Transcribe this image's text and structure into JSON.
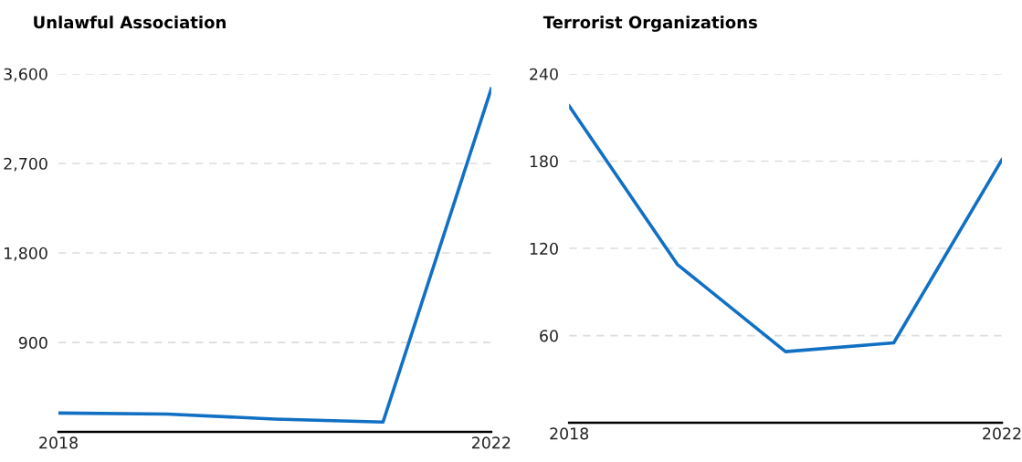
{
  "chart_data": [
    {
      "type": "line",
      "title": "Unlawful Association",
      "x": [
        2018,
        2019,
        2020,
        2021,
        2022
      ],
      "series": [
        {
          "color": "#1170c4",
          "values": [
            190,
            180,
            130,
            100,
            3450
          ]
        }
      ],
      "xlim": [
        2018,
        2022
      ],
      "xticks": [
        2018,
        2022
      ],
      "ylim": [
        0,
        3600
      ],
      "yticks": [
        {
          "value": 900,
          "label": "900"
        },
        {
          "value": 1800,
          "label": "1,800"
        },
        {
          "value": 2700,
          "label": "2,700"
        },
        {
          "value": 3600,
          "label": "3,600"
        }
      ],
      "grid": "y",
      "marker": "none",
      "line_style": "solid"
    },
    {
      "type": "line",
      "title": "Terrorist Organizations",
      "x": [
        2018,
        2019,
        2020,
        2021,
        2022
      ],
      "series": [
        {
          "color": "#1170c4",
          "values": [
            218,
            109,
            49,
            55,
            181
          ]
        }
      ],
      "xlim": [
        2018,
        2022
      ],
      "xticks": [
        2018,
        2022
      ],
      "ylim": [
        0,
        240
      ],
      "yticks": [
        60,
        120,
        180,
        240
      ],
      "grid": "y",
      "marker": "none",
      "line_style": "solid"
    }
  ]
}
